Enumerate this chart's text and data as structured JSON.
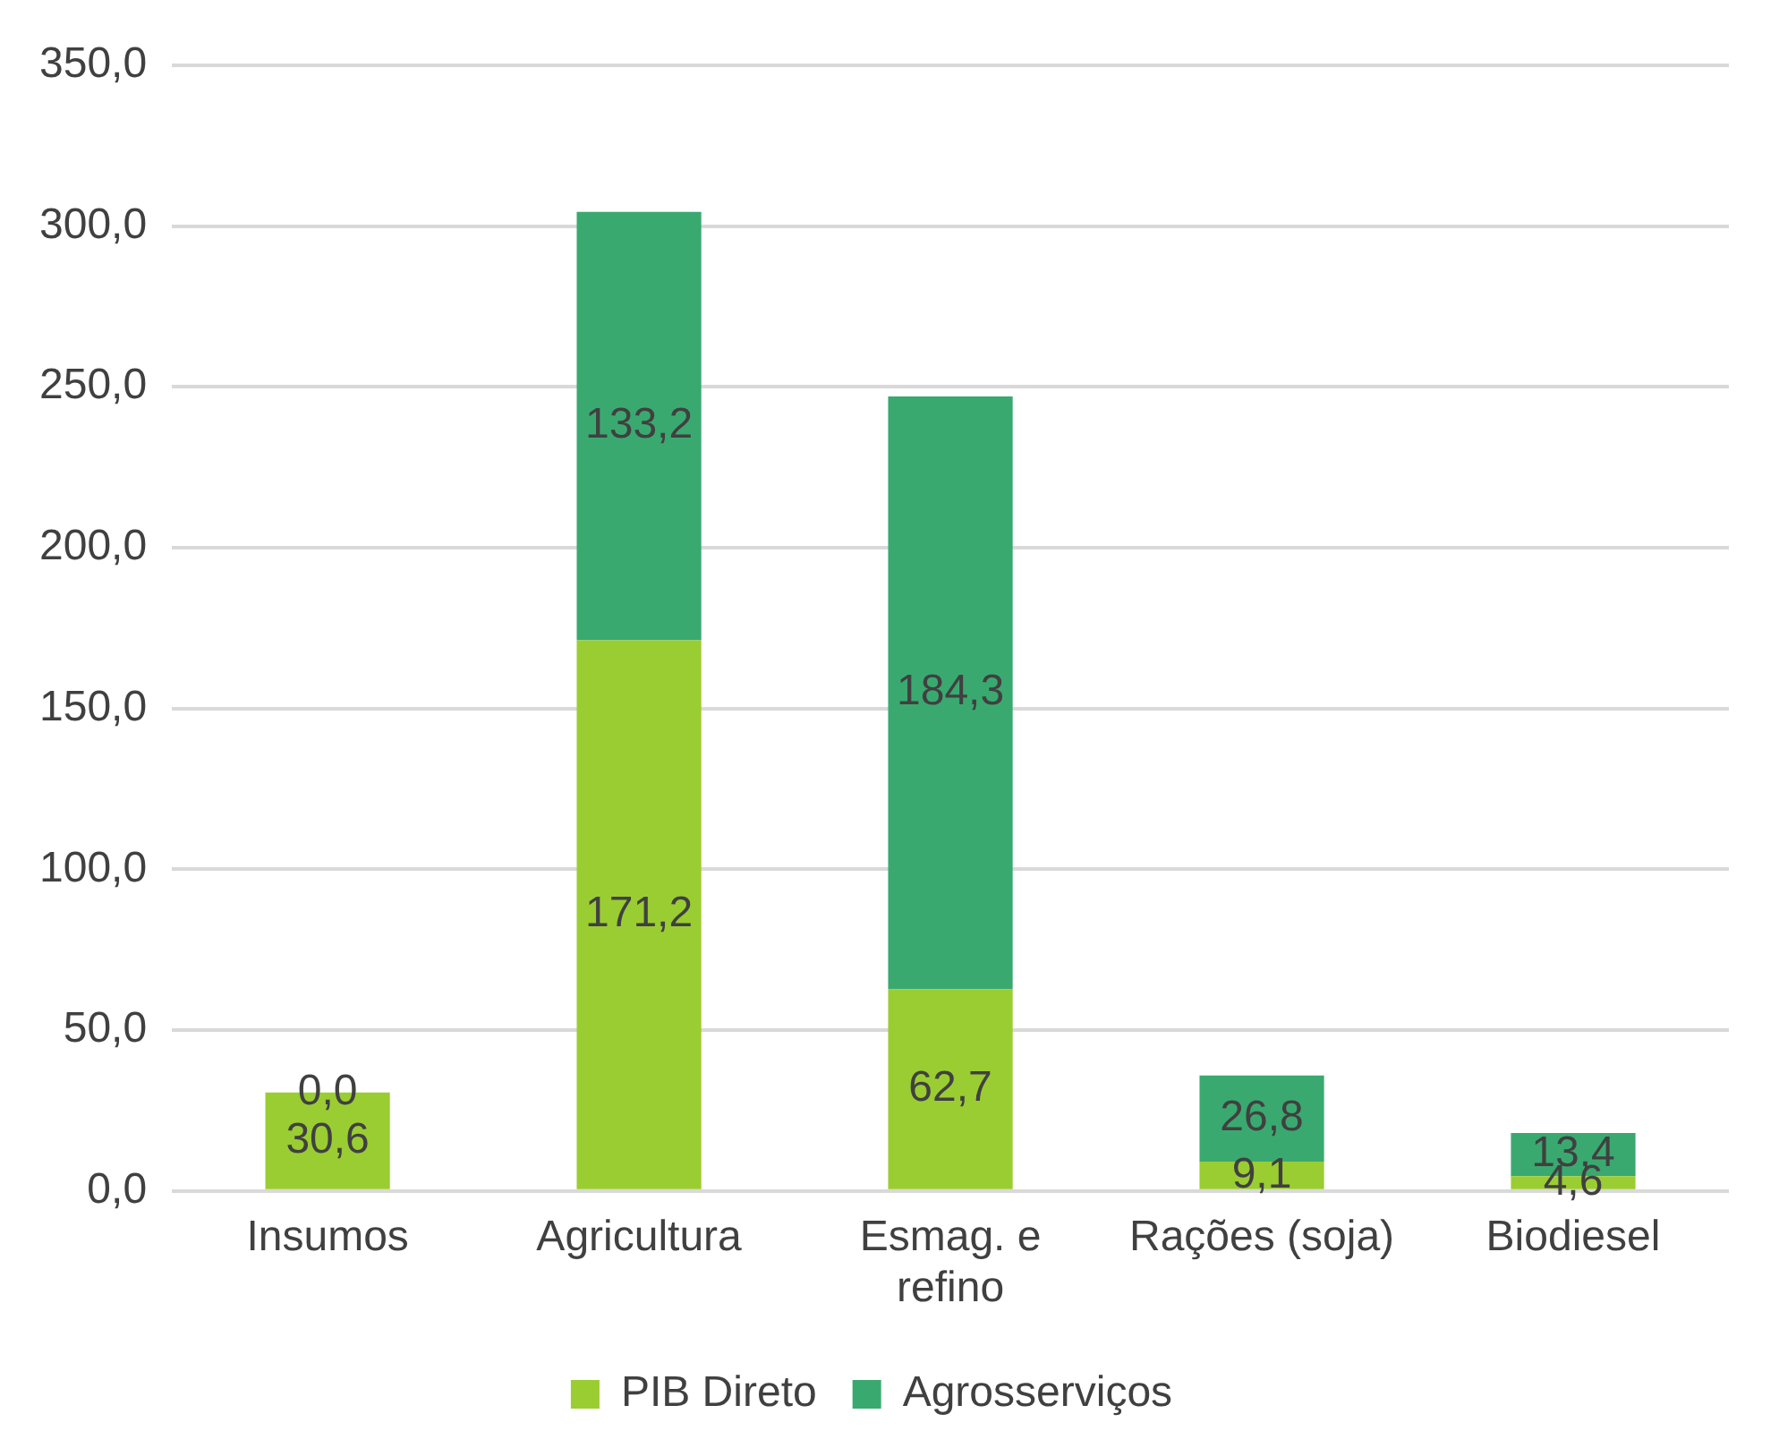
{
  "chart_data": {
    "type": "bar",
    "stacked": true,
    "categories": [
      "Insumos",
      "Agricultura",
      "Esmag. e refino",
      "Rações (soja)",
      "Biodiesel"
    ],
    "series": [
      {
        "name": "PIB Direto",
        "color": "#9acd32",
        "values": [
          30.6,
          171.2,
          62.7,
          9.1,
          4.6
        ],
        "value_labels": [
          "30,6",
          "171,2",
          "62,7",
          "9,1",
          "4,6"
        ]
      },
      {
        "name": "Agrosserviços",
        "color": "#3aa970",
        "values": [
          0.0,
          133.2,
          184.3,
          26.8,
          13.4
        ],
        "value_labels": [
          "0,0",
          "133,2",
          "184,3",
          "26,8",
          "13,4"
        ]
      }
    ],
    "ylim": [
      0,
      350
    ],
    "yticks": [
      {
        "value": 0,
        "label": "0,0"
      },
      {
        "value": 50,
        "label": "50,0"
      },
      {
        "value": 100,
        "label": "100,0"
      },
      {
        "value": 150,
        "label": "150,0"
      },
      {
        "value": 200,
        "label": "200,0"
      },
      {
        "value": 250,
        "label": "250,0"
      },
      {
        "value": 300,
        "label": "300,0"
      },
      {
        "value": 350,
        "label": "350,0"
      }
    ],
    "grid": "y",
    "legend": "bottom"
  }
}
